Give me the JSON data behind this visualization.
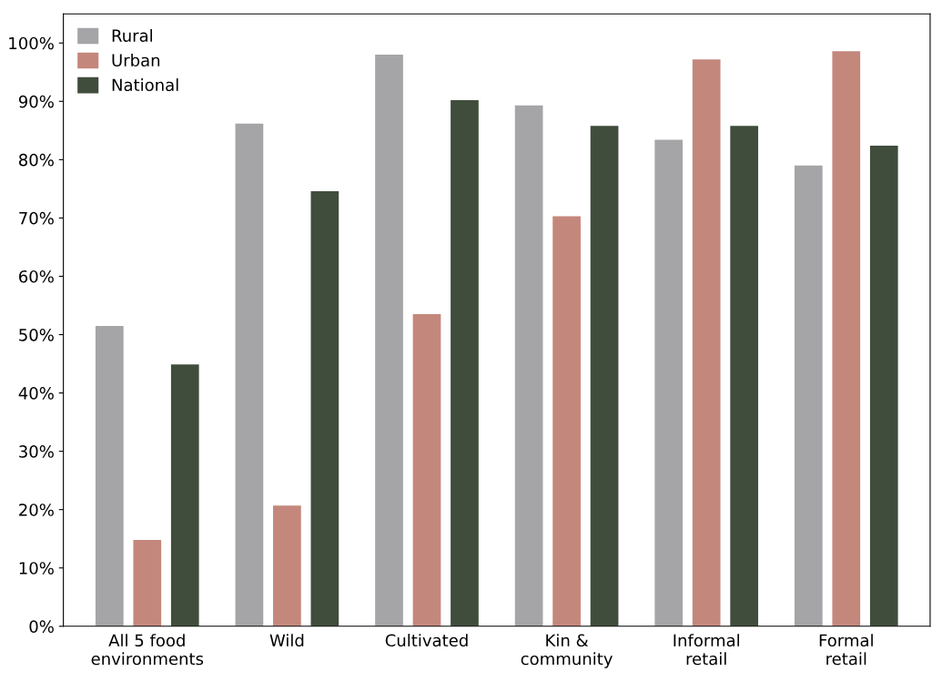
{
  "chart_data": {
    "type": "bar",
    "categories": [
      "All 5 food\nenvironments",
      "Wild",
      "Cultivated",
      "Kin &\ncommunity",
      "Informal\nretail",
      "Formal\nretail"
    ],
    "series": [
      {
        "name": "Rural",
        "color": "#a5a5a8",
        "values": [
          51.5,
          86.2,
          98.0,
          89.3,
          83.4,
          79.0
        ]
      },
      {
        "name": "Urban",
        "color": "#c4877c",
        "values": [
          14.8,
          20.7,
          53.5,
          70.3,
          97.2,
          98.6
        ]
      },
      {
        "name": "National",
        "color": "#404d3c",
        "values": [
          44.9,
          74.6,
          90.2,
          85.8,
          85.8,
          82.4
        ]
      }
    ],
    "ylim": [
      0,
      105
    ],
    "yticks": [
      {
        "value": 0,
        "label": "0%"
      },
      {
        "value": 10,
        "label": "10%"
      },
      {
        "value": 20,
        "label": "20%"
      },
      {
        "value": 30,
        "label": "30%"
      },
      {
        "value": 40,
        "label": "40%"
      },
      {
        "value": 50,
        "label": "50%"
      },
      {
        "value": 60,
        "label": "60%"
      },
      {
        "value": 70,
        "label": "70%"
      },
      {
        "value": 80,
        "label": "80%"
      },
      {
        "value": 90,
        "label": "90%"
      },
      {
        "value": 100,
        "label": "100%"
      }
    ],
    "grid": false,
    "legend": "top left"
  }
}
